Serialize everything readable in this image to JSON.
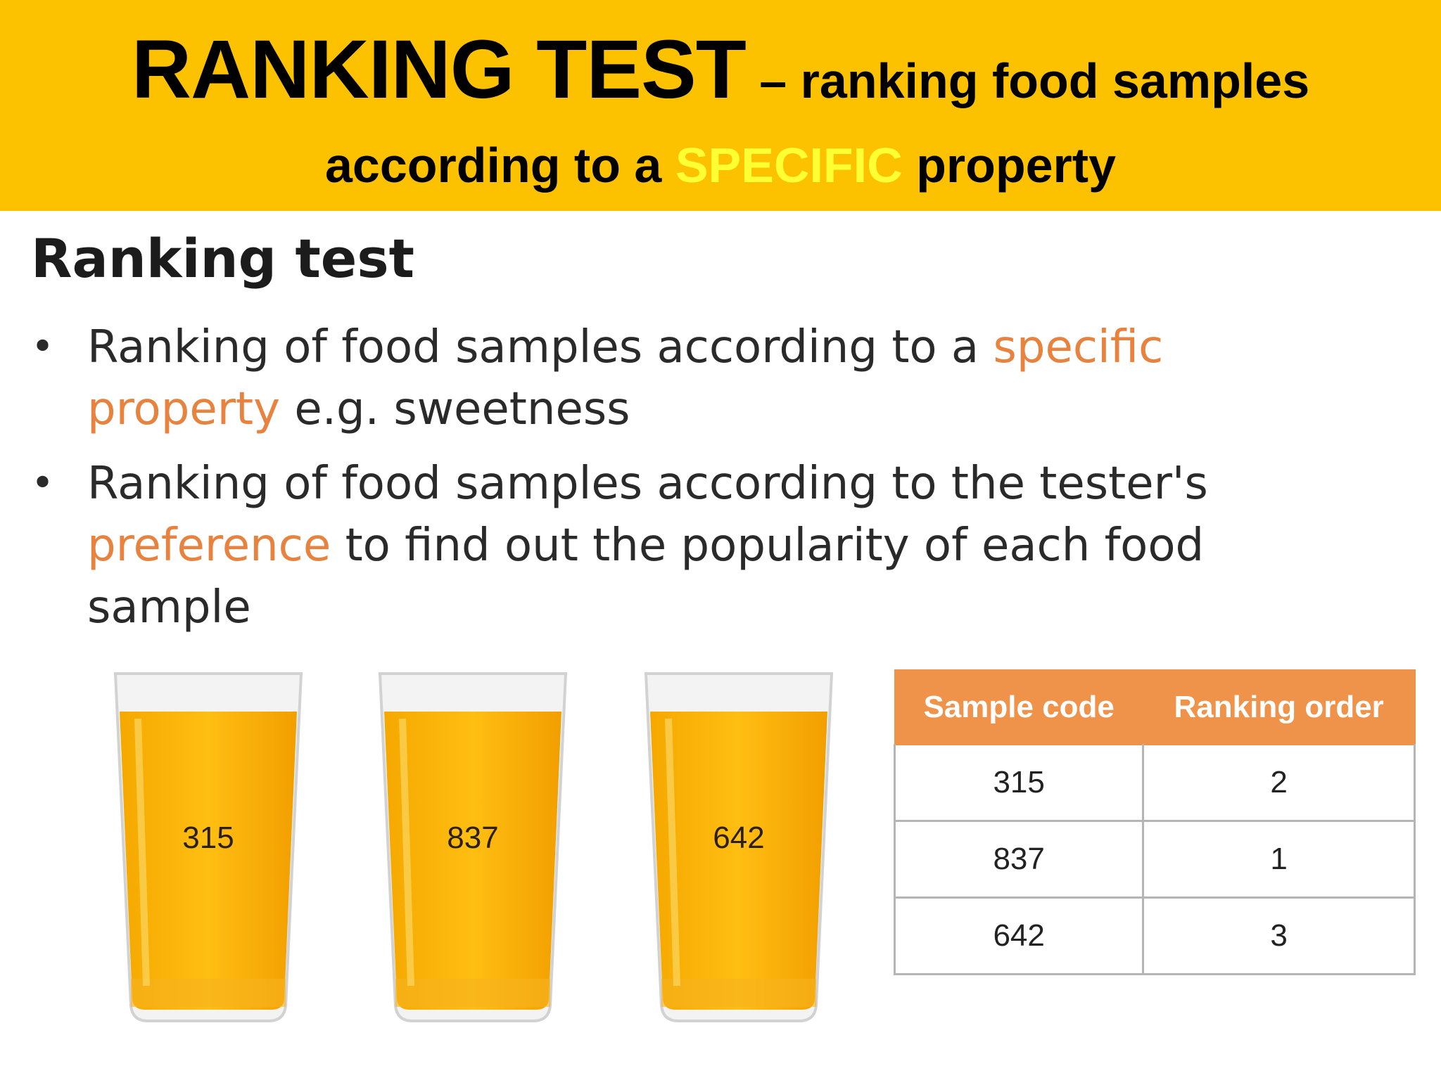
{
  "banner": {
    "title_big": "RANKING TEST",
    "title_rest": " – ranking food samples",
    "line2_before": "according to a ",
    "line2_highlight": "SPECIFIC",
    "line2_after": " property",
    "background_color": "#fcc200",
    "highlight_color": "#ffff33"
  },
  "heading": "Ranking test",
  "bullets": [
    {
      "marker": "•",
      "before": "Ranking of food samples according to a ",
      "highlight": "specific property",
      "after": " e.g. sweetness"
    },
    {
      "marker": "•",
      "before": "Ranking of food samples according to the tester's ",
      "highlight": "preference",
      "after": " to find out the popularity of each food sample"
    }
  ],
  "accent_color": "#e8823f",
  "glasses": [
    {
      "label": "315"
    },
    {
      "label": "837"
    },
    {
      "label": "642"
    }
  ],
  "table": {
    "headers": [
      "Sample code",
      "Ranking order"
    ],
    "header_color": "#ef924a",
    "rows": [
      [
        "315",
        "2"
      ],
      [
        "837",
        "1"
      ],
      [
        "642",
        "3"
      ]
    ]
  }
}
